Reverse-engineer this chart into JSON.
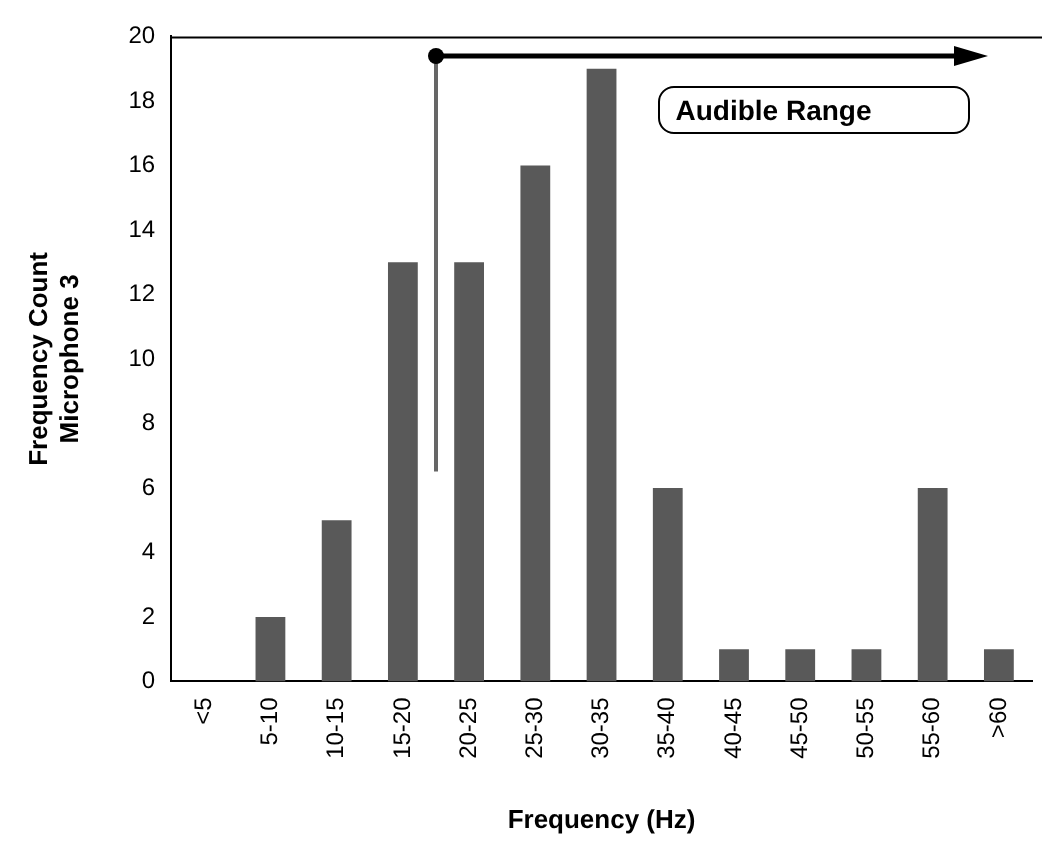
{
  "chart_data": {
    "type": "bar",
    "xlabel": "Frequency (Hz)",
    "ylabel": "Frequency Count\nMicrophone 3",
    "categories": [
      "<5",
      "5-10",
      "10-15",
      "15-20",
      "20-25",
      "25-30",
      "30-35",
      "35-40",
      "40-45",
      "45-50",
      "50-55",
      "55-60",
      ">60"
    ],
    "values": [
      0,
      2,
      5,
      13,
      13,
      16,
      19,
      6,
      1,
      1,
      1,
      6,
      1
    ],
    "color": "#595959",
    "ylim": [
      0,
      20
    ],
    "yticks": [
      0,
      2,
      4,
      6,
      8,
      10,
      12,
      14,
      16,
      18,
      20
    ],
    "grid": false,
    "legend": false,
    "annotations": [
      "Audible Range"
    ]
  }
}
